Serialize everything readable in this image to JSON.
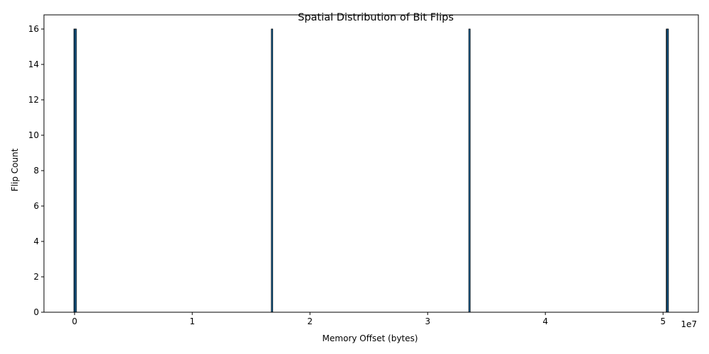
{
  "chart_data": {
    "type": "bar",
    "title": "Spatial Distribution of Bit Flips",
    "xlabel": "Memory Offset (bytes)",
    "ylabel": "Flip Count",
    "x_offset_text": "1e7",
    "xlim": [
      -2600000,
      53000000
    ],
    "ylim": [
      0,
      16.8
    ],
    "x_ticks": [
      0,
      10000000,
      20000000,
      30000000,
      40000000,
      50000000
    ],
    "x_tick_labels": [
      "0",
      "1",
      "2",
      "3",
      "4",
      "5"
    ],
    "y_ticks": [
      0,
      2,
      4,
      6,
      8,
      10,
      12,
      14,
      16
    ],
    "y_tick_labels": [
      "0",
      "2",
      "4",
      "6",
      "8",
      "10",
      "12",
      "14",
      "16"
    ],
    "grid": false,
    "bar_color": "#1f77b4",
    "bar_edge_color": "#000000",
    "series": [
      {
        "x": [
          16,
          100000,
          16777216,
          33554432,
          50331648,
          50400000
        ],
        "values": [
          16,
          16,
          16,
          16,
          16,
          16
        ]
      }
    ]
  }
}
